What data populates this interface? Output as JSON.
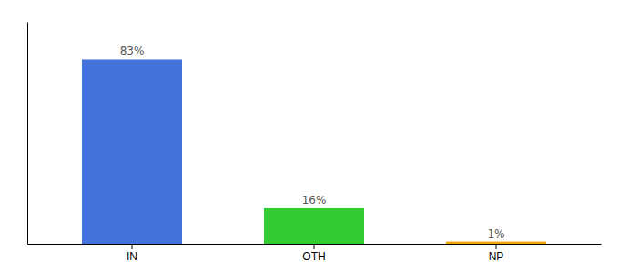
{
  "chart_data": {
    "type": "bar",
    "categories": [
      "IN",
      "OTH",
      "NP"
    ],
    "values": [
      83,
      16,
      1
    ],
    "value_labels": [
      "83%",
      "16%",
      "1%"
    ],
    "colors": [
      "#4472db",
      "#33cc33",
      "#f0a800"
    ],
    "ylim": [
      0,
      100
    ],
    "data_labels": true,
    "tick_labels": "x"
  }
}
